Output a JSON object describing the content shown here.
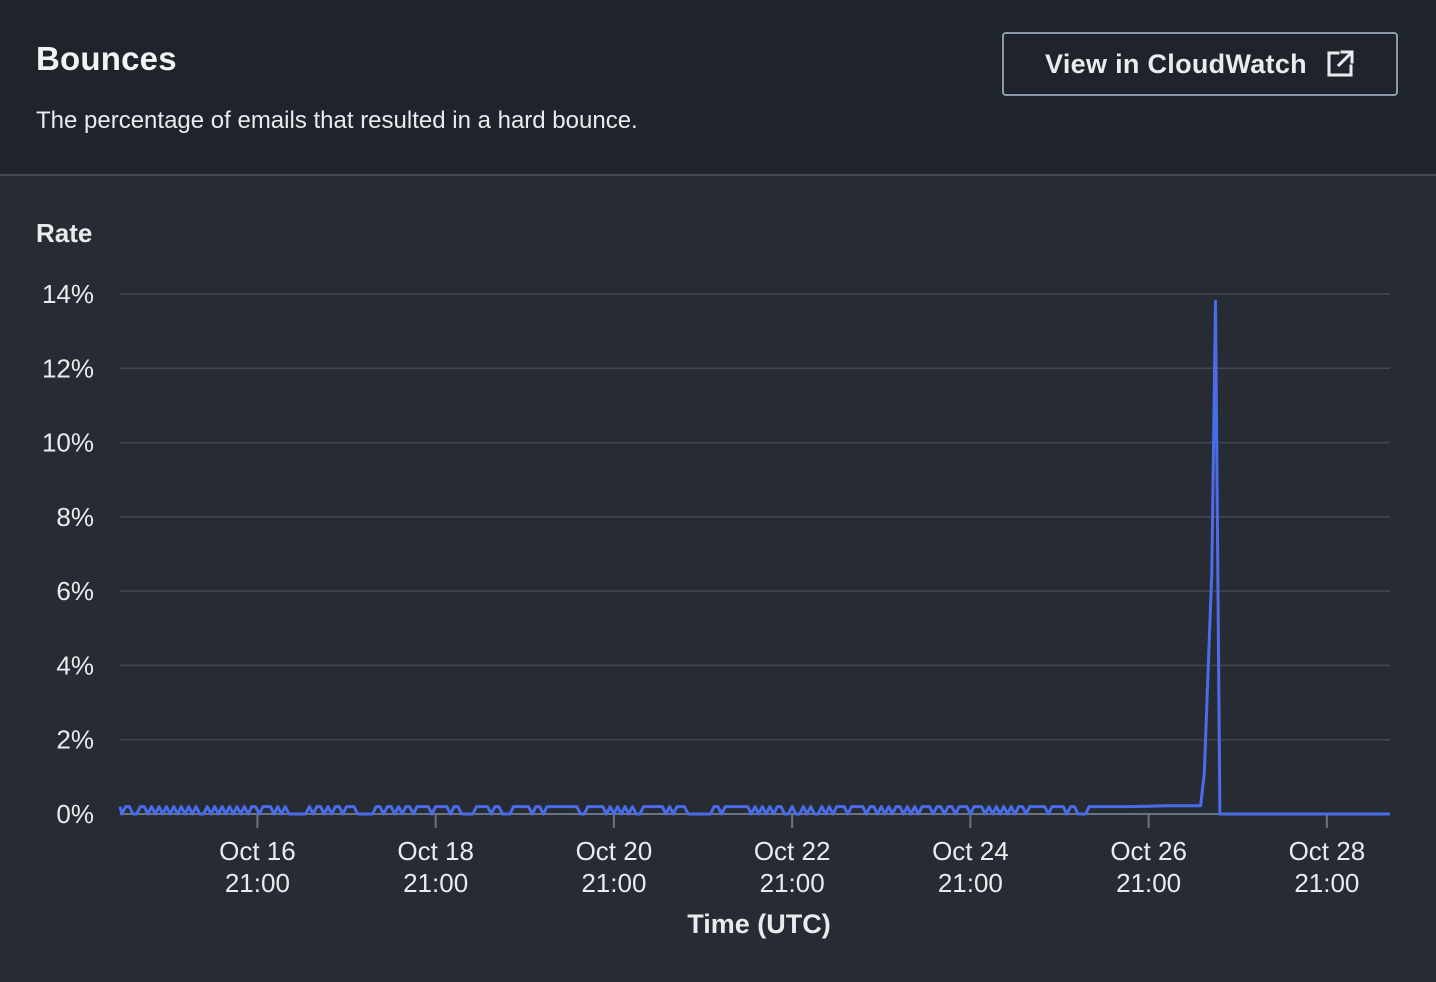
{
  "widget": {
    "title": "Bounces",
    "subtitle": "The percentage of emails that resulted in a hard bounce.",
    "cloudwatch_button_label": "View in CloudWatch",
    "cloudwatch_icon": "external-link-icon"
  },
  "colors": {
    "header_bg": "#1f232b",
    "panel_bg": "#272b33",
    "series_line": "#4a6cea",
    "gridline": "#414853",
    "text": "#e9ebed"
  },
  "chart_data": {
    "type": "line",
    "y_axis_title": "Rate",
    "xlabel": "Time (UTC)",
    "x_unit": "hours since Oct 15 00:00 UTC",
    "ylim": [
      0,
      14
    ],
    "xlim": [
      8,
      350
    ],
    "grid": true,
    "y_ticks": [
      {
        "value": 0,
        "label": "0%"
      },
      {
        "value": 2,
        "label": "2%"
      },
      {
        "value": 4,
        "label": "4%"
      },
      {
        "value": 6,
        "label": "6%"
      },
      {
        "value": 8,
        "label": "8%"
      },
      {
        "value": 10,
        "label": "10%"
      },
      {
        "value": 12,
        "label": "12%"
      },
      {
        "value": 14,
        "label": "14%"
      }
    ],
    "x_ticks": [
      {
        "value": 45,
        "label_line1": "Oct 16",
        "label_line2": "21:00"
      },
      {
        "value": 93,
        "label_line1": "Oct 18",
        "label_line2": "21:00"
      },
      {
        "value": 141,
        "label_line1": "Oct 20",
        "label_line2": "21:00"
      },
      {
        "value": 189,
        "label_line1": "Oct 22",
        "label_line2": "21:00"
      },
      {
        "value": 237,
        "label_line1": "Oct 24",
        "label_line2": "21:00"
      },
      {
        "value": 285,
        "label_line1": "Oct 26",
        "label_line2": "21:00"
      },
      {
        "value": 333,
        "label_line1": "Oct 28",
        "label_line2": "21:00"
      }
    ],
    "series": [
      {
        "name": "",
        "points": [
          [
            8,
            0.2
          ],
          [
            8.5,
            0
          ],
          [
            9.5,
            0.2
          ],
          [
            10.5,
            0.2
          ],
          [
            11.5,
            0
          ],
          [
            12.5,
            0
          ],
          [
            13.5,
            0.2
          ],
          [
            14.5,
            0.2
          ],
          [
            15.5,
            0
          ],
          [
            16.5,
            0.2
          ],
          [
            17.5,
            0
          ],
          [
            18.5,
            0.2
          ],
          [
            19.5,
            0
          ],
          [
            20.5,
            0.2
          ],
          [
            21.5,
            0
          ],
          [
            22.5,
            0.2
          ],
          [
            23.5,
            0
          ],
          [
            24.5,
            0.2
          ],
          [
            25.5,
            0
          ],
          [
            26.5,
            0.2
          ],
          [
            27.5,
            0
          ],
          [
            28.5,
            0.2
          ],
          [
            29.5,
            0
          ],
          [
            30.5,
            0
          ],
          [
            31.5,
            0.2
          ],
          [
            32.5,
            0
          ],
          [
            33.5,
            0.2
          ],
          [
            34.5,
            0
          ],
          [
            35.5,
            0.2
          ],
          [
            36.5,
            0
          ],
          [
            37.5,
            0.2
          ],
          [
            38.5,
            0
          ],
          [
            39.5,
            0.2
          ],
          [
            40.5,
            0
          ],
          [
            41.5,
            0.2
          ],
          [
            42.5,
            0
          ],
          [
            43.5,
            0.2
          ],
          [
            44.5,
            0.2
          ],
          [
            45.5,
            0
          ],
          [
            46.5,
            0.2
          ],
          [
            47.5,
            0.2
          ],
          [
            48.5,
            0.2
          ],
          [
            49.5,
            0
          ],
          [
            50.5,
            0.2
          ],
          [
            51.5,
            0
          ],
          [
            52.5,
            0.2
          ],
          [
            53.5,
            0
          ],
          [
            54,
            0
          ],
          [
            58,
            0
          ],
          [
            59,
            0.2
          ],
          [
            60,
            0
          ],
          [
            61,
            0.2
          ],
          [
            62,
            0.2
          ],
          [
            63,
            0
          ],
          [
            64,
            0.2
          ],
          [
            65,
            0
          ],
          [
            66,
            0.2
          ],
          [
            67,
            0.2
          ],
          [
            68,
            0
          ],
          [
            69,
            0.2
          ],
          [
            70,
            0.2
          ],
          [
            71,
            0.2
          ],
          [
            72,
            0
          ],
          [
            73,
            0
          ],
          [
            76,
            0
          ],
          [
            77,
            0.2
          ],
          [
            78,
            0.2
          ],
          [
            79,
            0
          ],
          [
            80,
            0.2
          ],
          [
            81,
            0.2
          ],
          [
            82,
            0
          ],
          [
            83,
            0.2
          ],
          [
            84,
            0
          ],
          [
            85,
            0.2
          ],
          [
            86,
            0.2
          ],
          [
            87,
            0
          ],
          [
            88,
            0.2
          ],
          [
            89,
            0.2
          ],
          [
            90,
            0.2
          ],
          [
            91,
            0.2
          ],
          [
            92,
            0
          ],
          [
            93,
            0.2
          ],
          [
            94,
            0.2
          ],
          [
            95,
            0.2
          ],
          [
            96,
            0.2
          ],
          [
            97,
            0
          ],
          [
            98,
            0.2
          ],
          [
            99,
            0.2
          ],
          [
            100,
            0
          ],
          [
            101,
            0
          ],
          [
            103,
            0
          ],
          [
            104,
            0.2
          ],
          [
            107,
            0.2
          ],
          [
            108,
            0
          ],
          [
            109,
            0.2
          ],
          [
            110,
            0.2
          ],
          [
            111,
            0
          ],
          [
            113,
            0
          ],
          [
            114,
            0.2
          ],
          [
            118,
            0.2
          ],
          [
            119,
            0
          ],
          [
            120,
            0.2
          ],
          [
            121,
            0.2
          ],
          [
            122,
            0
          ],
          [
            123,
            0.2
          ],
          [
            124,
            0.2
          ],
          [
            125,
            0.2
          ],
          [
            131,
            0.2
          ],
          [
            132,
            0
          ],
          [
            133,
            0
          ],
          [
            134,
            0.2
          ],
          [
            138,
            0.2
          ],
          [
            139,
            0
          ],
          [
            140,
            0.2
          ],
          [
            141,
            0
          ],
          [
            142,
            0.2
          ],
          [
            143,
            0
          ],
          [
            144,
            0.2
          ],
          [
            145,
            0
          ],
          [
            146,
            0.2
          ],
          [
            147,
            0
          ],
          [
            148,
            0
          ],
          [
            149,
            0.2
          ],
          [
            153,
            0.2
          ],
          [
            154,
            0.2
          ],
          [
            155,
            0
          ],
          [
            156,
            0.2
          ],
          [
            157,
            0
          ],
          [
            158,
            0.2
          ],
          [
            159,
            0.2
          ],
          [
            160,
            0.2
          ],
          [
            161,
            0
          ],
          [
            162,
            0
          ],
          [
            167,
            0
          ],
          [
            168,
            0.2
          ],
          [
            169,
            0.2
          ],
          [
            170,
            0
          ],
          [
            171,
            0.2
          ],
          [
            172,
            0.2
          ],
          [
            173,
            0.2
          ],
          [
            177,
            0.2
          ],
          [
            178,
            0
          ],
          [
            179,
            0.2
          ],
          [
            180,
            0
          ],
          [
            181,
            0.2
          ],
          [
            182,
            0
          ],
          [
            183,
            0.2
          ],
          [
            184,
            0
          ],
          [
            185,
            0.2
          ],
          [
            186,
            0.2
          ],
          [
            187,
            0
          ],
          [
            188,
            0
          ],
          [
            189,
            0.2
          ],
          [
            190,
            0
          ],
          [
            191,
            0
          ],
          [
            192,
            0.2
          ],
          [
            193,
            0
          ],
          [
            194,
            0.2
          ],
          [
            195,
            0
          ],
          [
            196,
            0
          ],
          [
            197,
            0.2
          ],
          [
            198,
            0
          ],
          [
            199,
            0.2
          ],
          [
            200,
            0
          ],
          [
            201,
            0.2
          ],
          [
            202,
            0.2
          ],
          [
            203,
            0.2
          ],
          [
            204,
            0
          ],
          [
            205,
            0.2
          ],
          [
            206,
            0.2
          ],
          [
            207,
            0.2
          ],
          [
            208,
            0.2
          ],
          [
            209,
            0
          ],
          [
            210,
            0.2
          ],
          [
            211,
            0.2
          ],
          [
            212,
            0
          ],
          [
            213,
            0.2
          ],
          [
            214,
            0
          ],
          [
            215,
            0.2
          ],
          [
            216,
            0
          ],
          [
            217,
            0.2
          ],
          [
            218,
            0.2
          ],
          [
            219,
            0
          ],
          [
            220,
            0.2
          ],
          [
            221,
            0
          ],
          [
            222,
            0.2
          ],
          [
            223,
            0
          ],
          [
            224,
            0.2
          ],
          [
            225,
            0.2
          ],
          [
            226,
            0.2
          ],
          [
            227,
            0
          ],
          [
            228,
            0.2
          ],
          [
            229,
            0.2
          ],
          [
            230,
            0
          ],
          [
            231,
            0.2
          ],
          [
            232,
            0.2
          ],
          [
            233,
            0
          ],
          [
            234,
            0.2
          ],
          [
            235,
            0.2
          ],
          [
            236,
            0.2
          ],
          [
            237,
            0
          ],
          [
            238,
            0.2
          ],
          [
            239,
            0.2
          ],
          [
            240,
            0.2
          ],
          [
            241,
            0
          ],
          [
            242,
            0.2
          ],
          [
            243,
            0
          ],
          [
            244,
            0.2
          ],
          [
            245,
            0
          ],
          [
            246,
            0.2
          ],
          [
            247,
            0
          ],
          [
            248,
            0.2
          ],
          [
            249,
            0
          ],
          [
            250,
            0.2
          ],
          [
            251,
            0.2
          ],
          [
            252,
            0
          ],
          [
            253,
            0.2
          ],
          [
            254,
            0.2
          ],
          [
            255,
            0.2
          ],
          [
            256,
            0.2
          ],
          [
            257,
            0.2
          ],
          [
            258,
            0
          ],
          [
            259,
            0.2
          ],
          [
            260,
            0.2
          ],
          [
            261,
            0.2
          ],
          [
            262,
            0.2
          ],
          [
            263,
            0
          ],
          [
            264,
            0.2
          ],
          [
            265,
            0.2
          ],
          [
            266,
            0
          ],
          [
            267,
            0
          ],
          [
            268,
            0
          ],
          [
            269,
            0.2
          ],
          [
            280,
            0.2
          ],
          [
            290,
            0.22
          ],
          [
            299,
            0.22
          ],
          [
            300,
            1.1
          ],
          [
            301,
            3.8
          ],
          [
            302,
            6.5
          ],
          [
            303,
            13.8
          ],
          [
            304.2,
            0
          ],
          [
            350,
            0
          ]
        ]
      }
    ]
  }
}
